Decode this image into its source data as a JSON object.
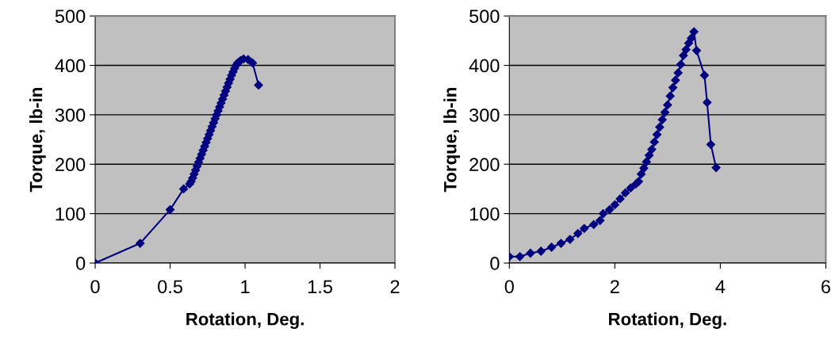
{
  "chart_data": [
    {
      "type": "line",
      "xlabel": "Rotation, Deg.",
      "ylabel": "Torque, lb-in",
      "xlim": [
        0,
        2
      ],
      "xticks": [
        0,
        0.5,
        1,
        1.5,
        2
      ],
      "ylim": [
        0,
        500
      ],
      "yticks": [
        0,
        100,
        200,
        300,
        400,
        500
      ],
      "grid": "y",
      "marker": "diamond",
      "line_style": "solid",
      "legend": false,
      "series": [
        {
          "color": "#000080",
          "x": [
            0,
            0.3,
            0.5,
            0.59,
            0.63,
            0.64,
            0.65,
            0.66,
            0.67,
            0.68,
            0.69,
            0.7,
            0.71,
            0.72,
            0.73,
            0.74,
            0.75,
            0.76,
            0.77,
            0.78,
            0.79,
            0.8,
            0.81,
            0.82,
            0.83,
            0.84,
            0.85,
            0.86,
            0.87,
            0.88,
            0.89,
            0.9,
            0.91,
            0.92,
            0.93,
            0.94,
            0.95,
            0.97,
            0.99,
            1.02,
            1.05,
            1.09
          ],
          "values": [
            0,
            40,
            108,
            150,
            160,
            165,
            172,
            180,
            188,
            196,
            204,
            212,
            220,
            228,
            236,
            244,
            252,
            260,
            268,
            276,
            284,
            292,
            300,
            308,
            316,
            324,
            332,
            340,
            348,
            356,
            364,
            372,
            380,
            387,
            394,
            400,
            405,
            410,
            413,
            412,
            405,
            360
          ]
        }
      ]
    },
    {
      "type": "line",
      "xlabel": "Rotation, Deg.",
      "ylabel": "Torque, lb-in",
      "xlim": [
        0,
        6
      ],
      "xticks": [
        0,
        2,
        4,
        6
      ],
      "ylim": [
        0,
        500
      ],
      "yticks": [
        0,
        100,
        200,
        300,
        400,
        500
      ],
      "grid": "y",
      "marker": "diamond",
      "line_style": "solid",
      "legend": false,
      "series": [
        {
          "color": "#000080",
          "x": [
            0,
            0.2,
            0.4,
            0.6,
            0.8,
            0.98,
            1.15,
            1.3,
            1.42,
            1.6,
            1.72,
            1.78,
            1.9,
            2.0,
            2.1,
            2.2,
            2.3,
            2.4,
            2.45,
            2.5,
            2.55,
            2.6,
            2.65,
            2.7,
            2.75,
            2.8,
            2.85,
            2.9,
            2.95,
            3.0,
            3.05,
            3.1,
            3.15,
            3.2,
            3.25,
            3.3,
            3.35,
            3.4,
            3.45,
            3.5,
            3.55,
            3.7,
            3.75,
            3.82,
            3.92
          ],
          "values": [
            13,
            13,
            20,
            24,
            32,
            40,
            48,
            60,
            70,
            78,
            86,
            100,
            108,
            118,
            130,
            142,
            152,
            160,
            165,
            180,
            192,
            205,
            218,
            230,
            245,
            260,
            275,
            290,
            305,
            320,
            338,
            355,
            370,
            385,
            402,
            420,
            432,
            445,
            455,
            468,
            430,
            380,
            325,
            240,
            193
          ]
        }
      ]
    }
  ]
}
